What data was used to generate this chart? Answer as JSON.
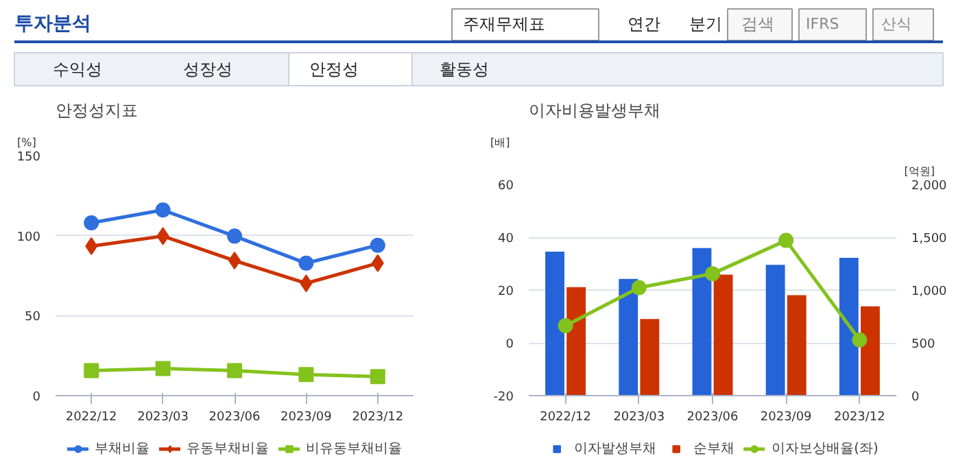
{
  "chart_data": [
    {
      "type": "other",
      "annotations": [
        "투자분석",
        "주재무제표",
        "연간",
        "분기",
        "검색",
        "IFRS",
        "산식",
        "수익성",
        "성장성",
        "안정성",
        "활동성"
      ]
    },
    {
      "type": "line",
      "title": "안정성지표",
      "ylabel": "[%]",
      "categories": [
        "2022/12",
        "2023/03",
        "2023/06",
        "2023/09",
        "2023/12"
      ],
      "ylim": [
        0,
        150
      ],
      "yticks": [
        0,
        50,
        100,
        150
      ],
      "grid": "y",
      "legend": "bottom",
      "series": [
        {
          "name": "부채비율",
          "color": "#2f6fde",
          "marker": "circle",
          "values": [
            108,
            116,
            99.7,
            82.8,
            94
          ]
        },
        {
          "name": "유동부채비율",
          "color": "#cc3300",
          "marker": "diamond",
          "values": [
            93.4,
            99.7,
            84.4,
            70.2,
            82.8
          ]
        },
        {
          "name": "비유동부채비율",
          "color": "#84c21e",
          "marker": "square",
          "values": [
            15.6,
            16.9,
            15.6,
            13.2,
            11.9
          ]
        }
      ]
    },
    {
      "type": "bar",
      "title": "이자비용발생부채",
      "ylabel": "[배]",
      "y2label": "[억원]",
      "categories": [
        "2022/12",
        "2023/03",
        "2023/06",
        "2023/09",
        "2023/12"
      ],
      "ylim": [
        -20,
        60
      ],
      "yticks": [
        -20,
        0,
        20,
        40,
        60
      ],
      "y2lim": [
        0,
        2000
      ],
      "y2ticks": [
        0,
        500,
        {
          "value": 1000,
          "label": "1,000"
        },
        {
          "value": 1500,
          "label": "1,500"
        },
        {
          "value": 2000,
          "label": "2,000"
        }
      ],
      "grid": "y",
      "legend": "bottom",
      "series": [
        {
          "name": "이자발생부채",
          "color": "#2563d9",
          "axis": "y2",
          "values": [
            1363,
            1106,
            1398,
            1239,
            1305
          ]
        },
        {
          "name": "순부채",
          "color": "#cc3300",
          "axis": "y2",
          "values": [
            1027,
            726,
            1146,
            951,
            845
          ]
        },
        {
          "name": "이자보상배율(좌)",
          "type": "line",
          "color": "#84c21e",
          "marker": "circle",
          "values": [
            6.5,
            20.9,
            26.2,
            38.8,
            1.1
          ]
        }
      ]
    }
  ]
}
